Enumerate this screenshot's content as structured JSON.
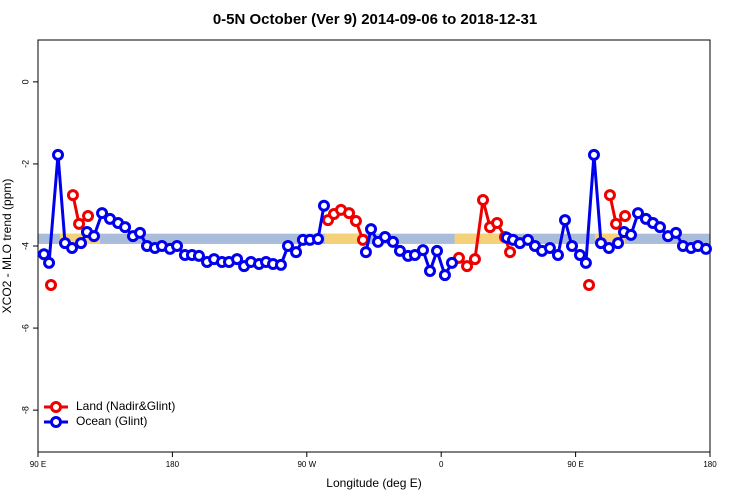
{
  "chart_data": {
    "type": "line",
    "title": "0-5N October (Ver 9)   2014-09-06 to 2018-12-31",
    "x_label": "Longitude (deg E)",
    "y_label": "XCO2 - MLO trend (ppm)",
    "xlim": [
      90,
      540
    ],
    "ylim": [
      -9.02,
      1.02
    ],
    "xticks": [
      {
        "value": 90,
        "label": "90 E"
      },
      180,
      {
        "value": 270,
        "label": "90 W"
      },
      {
        "value": 360,
        "label": "0"
      },
      {
        "value": 450,
        "label": "90 E"
      },
      {
        "value": 540,
        "label": "180"
      }
    ],
    "yticks": [
      0,
      -2,
      -4,
      -6,
      -8
    ],
    "legend": "bottom-left",
    "band": {
      "ylim": [
        -3.95,
        -3.7
      ],
      "color": "#a9bcd9",
      "land_color": "#f5d27a",
      "land_spans": [
        [
          104.7,
          131.5
        ],
        [
          282,
          309
        ],
        [
          369,
          406
        ],
        [
          463,
          483
        ]
      ]
    },
    "series": [
      {
        "name": "Land (Nadir&Glint)",
        "color": "#ee0000",
        "x": [
          98.7,
          106,
          113.4,
          117.5,
          123.5,
          198,
          284.2,
          288.2,
          292.9,
          298.3,
          302.9,
          307.6,
          339,
          371.9,
          377.3,
          382.6,
          388.0,
          392.7,
          397.4,
          402.7,
          406.1,
          432.8,
          459.0,
          466,
          473.0,
          477.1,
          483.1
        ],
        "values": [
          -4.95,
          null,
          -2.76,
          -3.46,
          -3.27,
          null,
          -3.37,
          -3.22,
          -3.12,
          -3.2,
          -3.39,
          -3.85,
          null,
          -4.29,
          -4.49,
          -4.32,
          -2.88,
          -3.54,
          -3.44,
          -3.78,
          -4.15,
          null,
          -4.95,
          null,
          -2.76,
          -3.46,
          -3.27
        ]
      },
      {
        "name": "Ocean (Glint)",
        "color": "#0000ee",
        "x": [
          94.0,
          97.4,
          103.4,
          108.1,
          112.8,
          118.8,
          122.8,
          127.5,
          132.9,
          138.2,
          143.6,
          148.3,
          153.6,
          158.3,
          163.0,
          168.3,
          173.0,
          178.4,
          183.1,
          188.4,
          193.1,
          197.8,
          203.2,
          207.9,
          213.2,
          217.9,
          223.3,
          228.0,
          232.6,
          238.0,
          242.7,
          247.4,
          252.7,
          257.4,
          262.8,
          267.4,
          272.1,
          277.5,
          281.5,
          295.6,
          309.6,
          313.0,
          317.7,
          322.4,
          327.7,
          332.4,
          337.8,
          342.4,
          347.8,
          352.5,
          357.2,
          362.5,
          367.2,
          386.0,
          404.0,
          408.1,
          412.7,
          418.1,
          422.8,
          427.5,
          432.8,
          438.2,
          442.9,
          447.6,
          452.9,
          456.9,
          462.3,
          467.0,
          472.3,
          478.4,
          482.4,
          487.1,
          491.8,
          497.1,
          501.8,
          506.5,
          511.9,
          517.2,
          521.9,
          527.3,
          531.9,
          537.3
        ],
        "values": [
          -4.2,
          -4.41,
          -1.78,
          -3.93,
          -4.05,
          -3.93,
          -3.66,
          -3.76,
          -3.2,
          -3.34,
          -3.44,
          -3.54,
          -3.76,
          -3.68,
          -4.0,
          -4.05,
          -4.0,
          -4.07,
          -4.0,
          -4.22,
          -4.22,
          -4.24,
          -4.39,
          -4.32,
          -4.39,
          -4.39,
          -4.32,
          -4.49,
          -4.39,
          -4.44,
          -4.39,
          -4.44,
          -4.46,
          -4.0,
          -4.15,
          -3.85,
          -3.85,
          -3.83,
          -3.02,
          null,
          -4.15,
          -3.59,
          -3.9,
          -3.78,
          -3.9,
          -4.12,
          -4.24,
          -4.22,
          -4.1,
          -4.61,
          -4.12,
          -4.71,
          -4.41,
          null,
          -3.8,
          -3.85,
          -3.93,
          -3.85,
          -4.0,
          -4.12,
          -4.05,
          -4.22,
          -3.37,
          -4.0,
          -4.22,
          -4.41,
          -1.78,
          -3.93,
          -4.05,
          -3.93,
          -3.66,
          -3.73,
          -3.2,
          -3.34,
          -3.44,
          -3.54,
          -3.76,
          -3.68,
          -4.0,
          -4.05,
          -4.0,
          -4.07
        ]
      }
    ]
  }
}
